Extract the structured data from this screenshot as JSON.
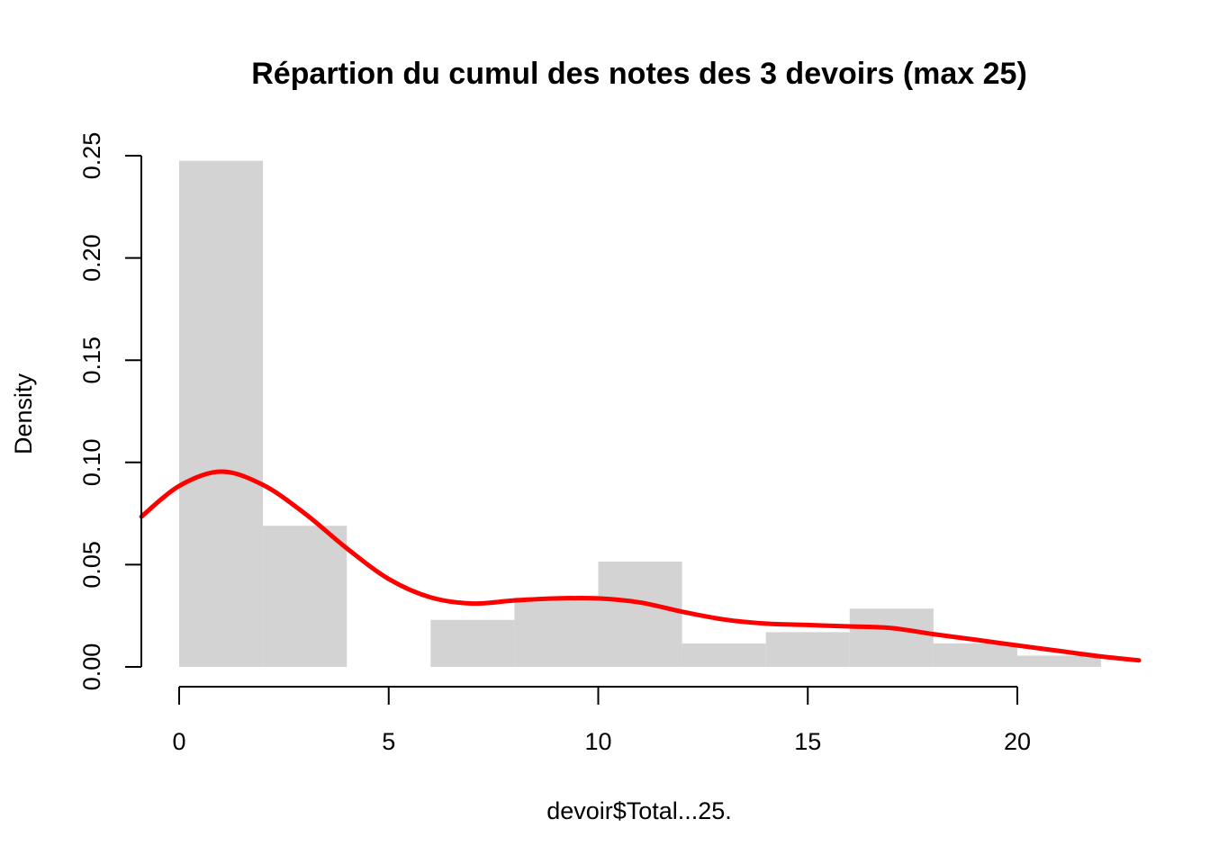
{
  "chart_data": {
    "type": "histogram",
    "title": "Répartion du cumul des notes des 3 devoirs (max 25)",
    "xlabel": "devoir$Total...25.",
    "ylabel": "Density",
    "xlim": [
      -0.9,
      22.9
    ],
    "ylim": [
      0,
      0.25
    ],
    "x_ticks": [
      0,
      5,
      10,
      15,
      20
    ],
    "y_ticks": [
      0.0,
      0.05,
      0.1,
      0.15,
      0.2,
      0.25
    ],
    "x_tick_labels": [
      "0",
      "5",
      "10",
      "15",
      "20"
    ],
    "y_tick_labels": [
      "0.00",
      "0.05",
      "0.10",
      "0.15",
      "0.20",
      "0.25"
    ],
    "bins": [
      {
        "start": 0,
        "end": 2,
        "density": 0.2475
      },
      {
        "start": 2,
        "end": 4,
        "density": 0.069
      },
      {
        "start": 4,
        "end": 6,
        "density": 0.0
      },
      {
        "start": 6,
        "end": 8,
        "density": 0.023
      },
      {
        "start": 8,
        "end": 10,
        "density": 0.034
      },
      {
        "start": 10,
        "end": 12,
        "density": 0.0515
      },
      {
        "start": 12,
        "end": 14,
        "density": 0.0115
      },
      {
        "start": 14,
        "end": 16,
        "density": 0.017
      },
      {
        "start": 16,
        "end": 18,
        "density": 0.0285
      },
      {
        "start": 18,
        "end": 20,
        "density": 0.0115
      },
      {
        "start": 20,
        "end": 22,
        "density": 0.0055
      }
    ],
    "density_curve": {
      "x": [
        -0.9,
        0.0,
        1.0,
        2.0,
        3.0,
        4.0,
        5.0,
        6.0,
        7.0,
        8.0,
        9.0,
        10.0,
        11.0,
        12.0,
        13.0,
        14.0,
        15.0,
        16.0,
        17.0,
        18.0,
        19.0,
        20.0,
        21.0,
        22.0,
        22.9
      ],
      "y": [
        0.0735,
        0.0885,
        0.0955,
        0.089,
        0.075,
        0.058,
        0.043,
        0.034,
        0.031,
        0.0325,
        0.0335,
        0.0335,
        0.0315,
        0.027,
        0.0232,
        0.0212,
        0.0205,
        0.0198,
        0.019,
        0.016,
        0.0133,
        0.0105,
        0.0078,
        0.0051,
        0.0032
      ]
    },
    "grid": false,
    "colors": {
      "bars": "#d3d3d3",
      "density_line": "#ff0000",
      "axes": "#000000"
    }
  }
}
